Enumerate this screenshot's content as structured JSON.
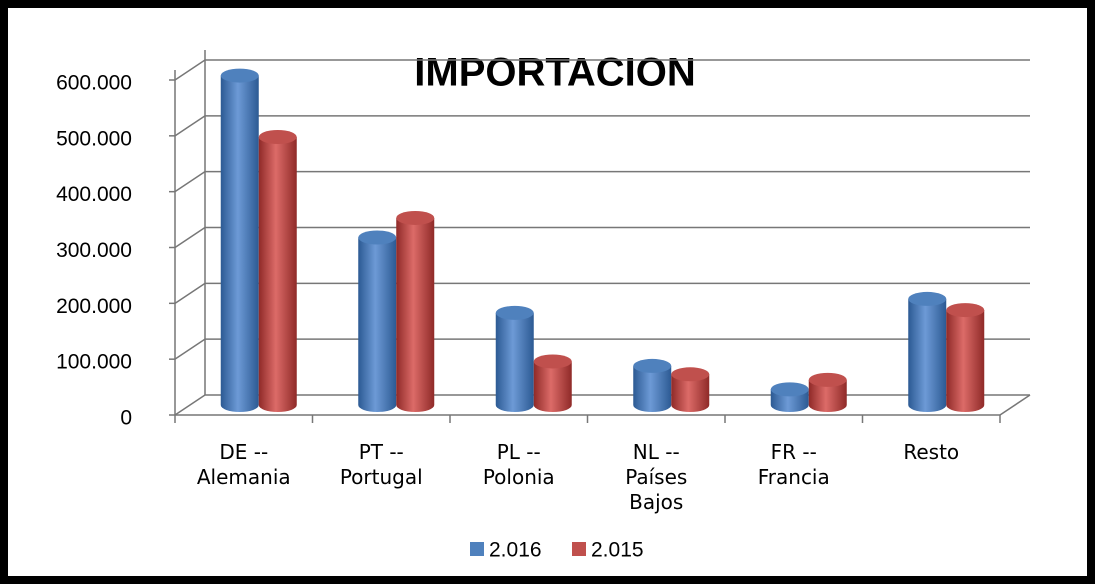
{
  "chart_data": {
    "type": "bar3d",
    "title": "IMPORTACION",
    "categories": [
      "DE -- Alemania",
      "PT -- Portugal",
      "PL -- Polonia",
      "NL -- Países Bajos",
      "FR -- Francia",
      "Resto"
    ],
    "series": [
      {
        "name": "2.016",
        "color": "#4f81bd",
        "values": [
          590000,
          300000,
          165000,
          70000,
          28000,
          190000
        ]
      },
      {
        "name": "2.015",
        "color": "#c0504d",
        "values": [
          480000,
          335000,
          78000,
          55000,
          45000,
          170000
        ]
      }
    ],
    "ylim": [
      0,
      600000
    ],
    "yticks": [
      {
        "value": 0,
        "label": "0"
      },
      {
        "value": 100000,
        "label": "100.000"
      },
      {
        "value": 200000,
        "label": "200.000"
      },
      {
        "value": 300000,
        "label": "300.000"
      },
      {
        "value": 400000,
        "label": "400.000"
      },
      {
        "value": 500000,
        "label": "500.000"
      },
      {
        "value": 600000,
        "label": "600.000"
      }
    ],
    "grid": true,
    "legend": "bottom"
  }
}
